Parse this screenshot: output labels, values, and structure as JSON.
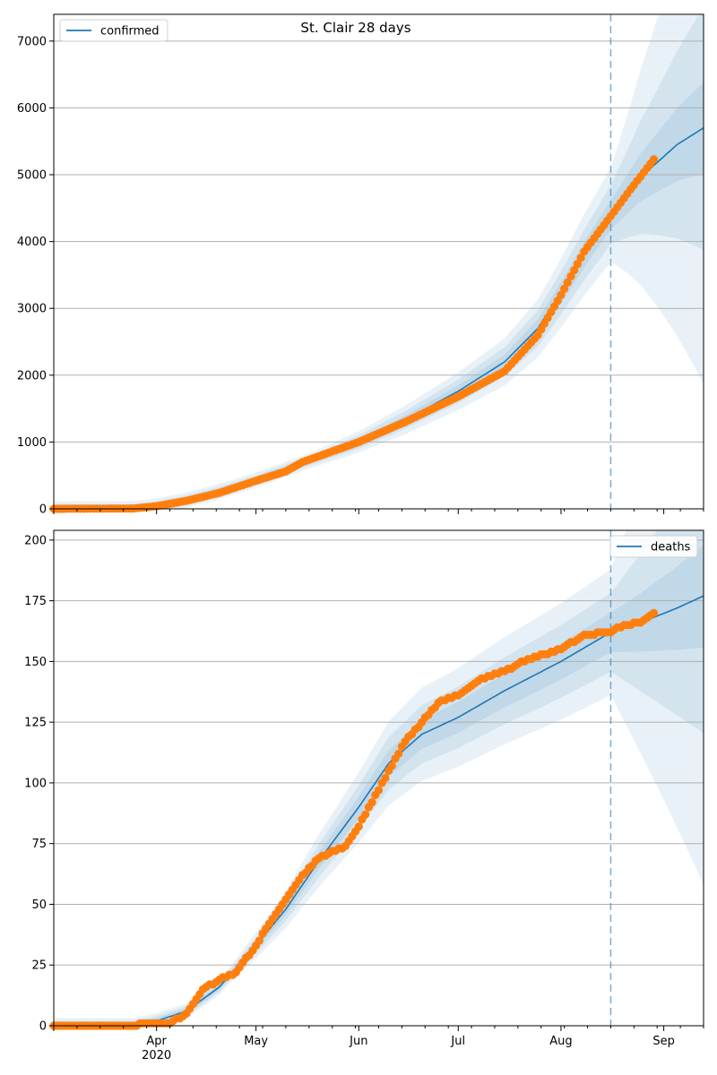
{
  "title": "St. Clair 28 days",
  "colors": {
    "model_line": "#1f77b4",
    "observed": "#ff7f0e",
    "band": "#1f77b4",
    "grid": "#b0b0b0",
    "forecast_marker": "#1f77b4"
  },
  "chart_data": [
    {
      "type": "line",
      "name": "confirmed",
      "legend_label": "confirmed",
      "legend_position": "top-left",
      "grid": "horizontal",
      "x_type": "date",
      "xlim": [
        "2020-03-01",
        "2020-09-13"
      ],
      "ylim": [
        0,
        7400
      ],
      "y_ticks": [
        0,
        1000,
        2000,
        3000,
        4000,
        5000,
        6000,
        7000
      ],
      "forecast_start": "2020-08-16",
      "model_median": [
        [
          "2020-03-01",
          0
        ],
        [
          "2020-03-25",
          0
        ],
        [
          "2020-04-01",
          40
        ],
        [
          "2020-04-10",
          130
        ],
        [
          "2020-04-20",
          260
        ],
        [
          "2020-05-01",
          430
        ],
        [
          "2020-05-15",
          680
        ],
        [
          "2020-06-01",
          1000
        ],
        [
          "2020-06-15",
          1330
        ],
        [
          "2020-07-01",
          1760
        ],
        [
          "2020-07-15",
          2200
        ],
        [
          "2020-07-25",
          2700
        ],
        [
          "2020-08-01",
          3230
        ],
        [
          "2020-08-08",
          3800
        ],
        [
          "2020-08-16",
          4400
        ],
        [
          "2020-08-25",
          4960
        ],
        [
          "2020-09-05",
          5450
        ],
        [
          "2020-09-13",
          5700
        ]
      ],
      "band_widths": [
        0.03,
        0.06,
        0.1
      ],
      "band_growth_after_forecast": [
        {
          "lower": [
            "2020-08-16",
            4400,
            "2020-09-13",
            4850
          ]
        },
        {
          "upper": [
            "2020-08-16",
            4400,
            "2020-09-13",
            7300
          ]
        }
      ],
      "observed": [
        [
          "2020-03-01",
          0
        ],
        [
          "2020-03-25",
          5
        ],
        [
          "2020-04-01",
          40
        ],
        [
          "2020-04-10",
          120
        ],
        [
          "2020-04-20",
          240
        ],
        [
          "2020-05-01",
          420
        ],
        [
          "2020-05-10",
          560
        ],
        [
          "2020-05-15",
          700
        ],
        [
          "2020-06-01",
          1000
        ],
        [
          "2020-06-15",
          1300
        ],
        [
          "2020-07-01",
          1680
        ],
        [
          "2020-07-15",
          2060
        ],
        [
          "2020-07-25",
          2600
        ],
        [
          "2020-08-01",
          3200
        ],
        [
          "2020-08-08",
          3850
        ],
        [
          "2020-08-16",
          4380
        ],
        [
          "2020-08-22",
          4780
        ],
        [
          "2020-08-29",
          5230
        ]
      ]
    },
    {
      "type": "line",
      "name": "deaths",
      "legend_label": "deaths",
      "legend_position": "top-right",
      "grid": "horizontal",
      "x_type": "date",
      "xlim": [
        "2020-03-01",
        "2020-09-13"
      ],
      "ylim": [
        0,
        204
      ],
      "y_ticks": [
        0,
        25,
        50,
        75,
        100,
        125,
        150,
        175,
        200
      ],
      "forecast_start": "2020-08-16",
      "model_median": [
        [
          "2020-03-01",
          0
        ],
        [
          "2020-03-25",
          0
        ],
        [
          "2020-04-01",
          2
        ],
        [
          "2020-04-10",
          6
        ],
        [
          "2020-04-20",
          16
        ],
        [
          "2020-05-01",
          33
        ],
        [
          "2020-05-10",
          48
        ],
        [
          "2020-05-20",
          68
        ],
        [
          "2020-06-01",
          90
        ],
        [
          "2020-06-10",
          108
        ],
        [
          "2020-06-20",
          120
        ],
        [
          "2020-07-01",
          127
        ],
        [
          "2020-07-15",
          138
        ],
        [
          "2020-08-01",
          150
        ],
        [
          "2020-08-16",
          162
        ],
        [
          "2020-08-25",
          166
        ],
        [
          "2020-09-05",
          172
        ],
        [
          "2020-09-13",
          177
        ]
      ],
      "observed": [
        [
          "2020-03-01",
          0
        ],
        [
          "2020-03-25",
          0
        ],
        [
          "2020-03-28",
          1
        ],
        [
          "2020-04-05",
          1
        ],
        [
          "2020-04-10",
          5
        ],
        [
          "2020-04-15",
          15
        ],
        [
          "2020-04-20",
          19
        ],
        [
          "2020-04-25",
          22
        ],
        [
          "2020-05-01",
          33
        ],
        [
          "2020-05-05",
          42
        ],
        [
          "2020-05-10",
          52
        ],
        [
          "2020-05-15",
          62
        ],
        [
          "2020-05-20",
          69
        ],
        [
          "2020-05-28",
          74
        ],
        [
          "2020-06-01",
          82
        ],
        [
          "2020-06-05",
          92
        ],
        [
          "2020-06-10",
          105
        ],
        [
          "2020-06-15",
          117
        ],
        [
          "2020-06-20",
          125
        ],
        [
          "2020-06-25",
          133
        ],
        [
          "2020-07-01",
          136
        ],
        [
          "2020-07-08",
          143
        ],
        [
          "2020-07-15",
          146
        ],
        [
          "2020-07-22",
          151
        ],
        [
          "2020-08-01",
          155
        ],
        [
          "2020-08-08",
          161
        ],
        [
          "2020-08-16",
          162
        ],
        [
          "2020-08-20",
          165
        ],
        [
          "2020-08-25",
          166
        ],
        [
          "2020-08-29",
          170
        ]
      ]
    }
  ],
  "x_axis": {
    "month_labels": [
      "Apr",
      "May",
      "Jun",
      "Jul",
      "Aug",
      "Sep"
    ],
    "year_label": "2020"
  }
}
